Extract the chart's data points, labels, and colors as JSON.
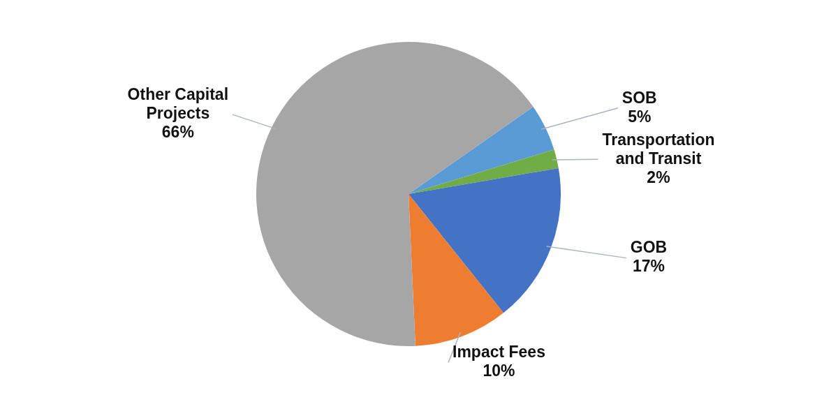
{
  "chart_data": {
    "type": "pie",
    "categories": [
      "SOB",
      "Transportation and Transit",
      "GOB",
      "Impact Fees",
      "Other Capital Projects"
    ],
    "values": [
      5,
      2,
      17,
      10,
      66
    ],
    "colors": [
      "#5b9bd5",
      "#70ad47",
      "#4472c4",
      "#ed7d31",
      "#a6a6a6"
    ],
    "value_labels": [
      "5%",
      "2%",
      "17%",
      "10%",
      "66%"
    ],
    "legend": false
  }
}
